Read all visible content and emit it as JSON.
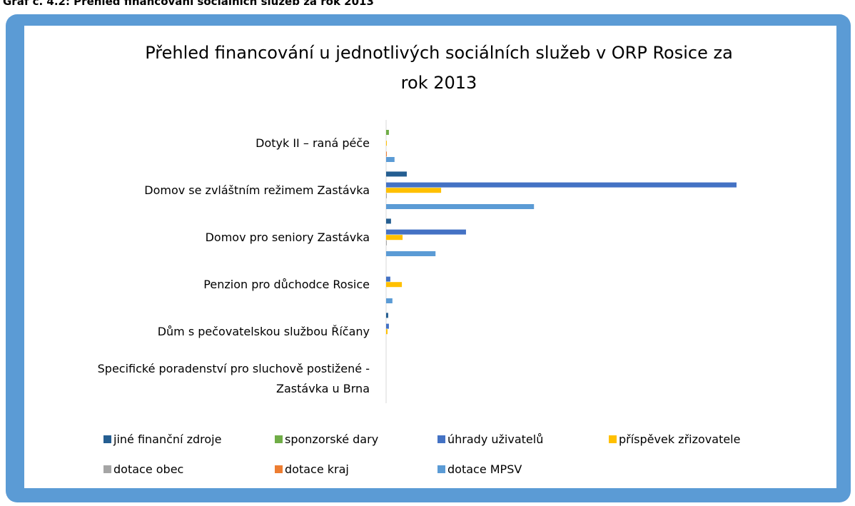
{
  "caption": "Graf č. 4.2: Přehled financování sociálních služeb za rok 2013",
  "chart_data": {
    "type": "barh",
    "title": "Přehled financování u jednotlivých sociálních služeb v ORP Rosice za\nrok 2013",
    "categories": [
      "Dotyk II – raná péče",
      "Domov se zvláštním režimem Zastávka",
      "Domov pro seniory Zastávka",
      "Penzion pro důchodce Rosice",
      "Dům s pečovatelskou službou Říčany",
      "Specifické poradenství pro sluchově postižené -\nZastávka u Brna"
    ],
    "series": [
      {
        "name": "jiné finanční zdroje",
        "color": "#255e91",
        "values": [
          0,
          5.9,
          1.4,
          0,
          0.6,
          0
        ]
      },
      {
        "name": "sponzorské dary",
        "color": "#70ad47",
        "values": [
          0.8,
          0,
          0,
          0,
          0,
          0
        ]
      },
      {
        "name": "úhrady uživatelů",
        "color": "#4472c4",
        "values": [
          0,
          100,
          22.8,
          1.2,
          0.8,
          0
        ]
      },
      {
        "name": "příspěvek zřizovatele",
        "color": "#ffc000",
        "values": [
          0.2,
          15.7,
          4.7,
          4.5,
          0.4,
          0
        ]
      },
      {
        "name": "dotace obec",
        "color": "#a5a5a5",
        "values": [
          0,
          0.2,
          0.2,
          0,
          0,
          0
        ]
      },
      {
        "name": "dotace kraj",
        "color": "#ed7d31",
        "values": [
          0.2,
          0,
          0,
          0,
          0,
          0
        ]
      },
      {
        "name": "dotace MPSV",
        "color": "#5b9bd5",
        "values": [
          2.4,
          42.2,
          14.1,
          1.8,
          0,
          0
        ]
      }
    ]
  }
}
